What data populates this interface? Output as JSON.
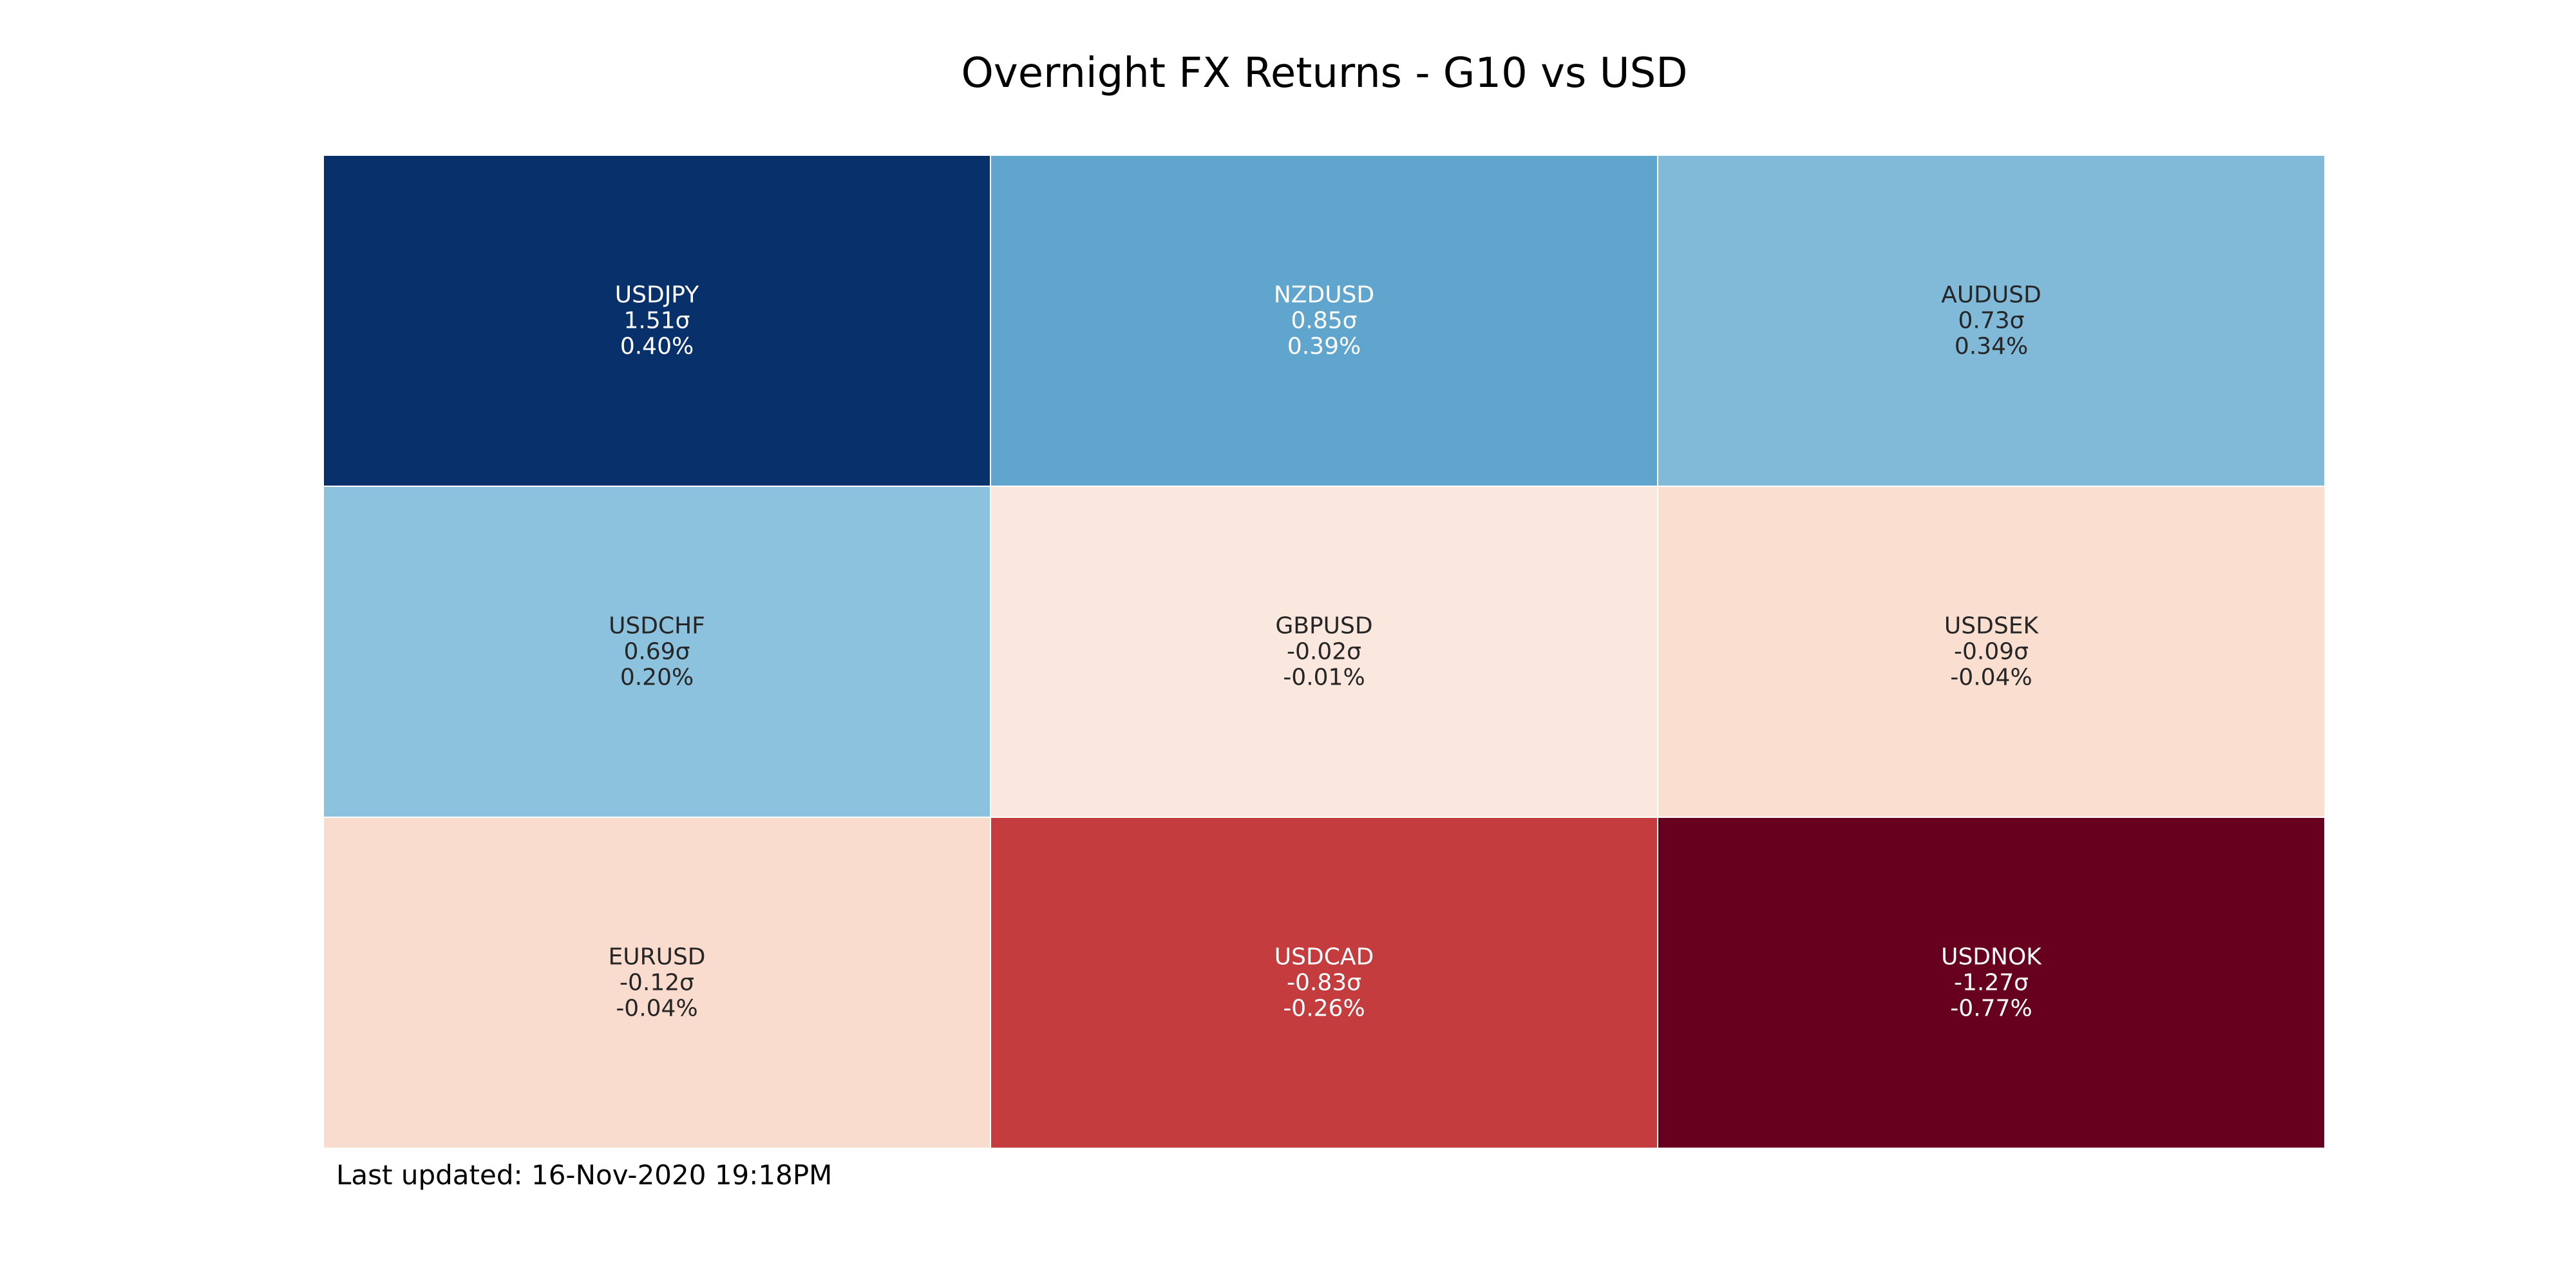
{
  "chart_data": {
    "type": "heatmap",
    "title": "Overnight FX Returns - G10 vs USD",
    "colormap": "RdBu",
    "color_value": "sigma",
    "rows": 3,
    "cols": 3,
    "cells": [
      {
        "pair": "USDJPY",
        "sigma": 1.51,
        "sigma_label": "1.51σ",
        "return_pct": 0.4,
        "return_label": "0.40%",
        "color": "#08306b",
        "text_color": "#ffffff"
      },
      {
        "pair": "NZDUSD",
        "sigma": 0.85,
        "sigma_label": "0.85σ",
        "return_pct": 0.39,
        "return_label": "0.39%",
        "color": "#5fa5ce",
        "text_color": "#ffffff"
      },
      {
        "pair": "AUDUSD",
        "sigma": 0.73,
        "sigma_label": "0.73σ",
        "return_pct": 0.34,
        "return_label": "0.34%",
        "color": "#81b9d8",
        "text_color": "#262626"
      },
      {
        "pair": "USDCHF",
        "sigma": 0.69,
        "sigma_label": "0.69σ",
        "return_pct": 0.2,
        "return_label": "0.20%",
        "color": "#8cc2de",
        "text_color": "#262626"
      },
      {
        "pair": "GBPUSD",
        "sigma": -0.02,
        "sigma_label": "-0.02σ",
        "return_pct": -0.01,
        "return_label": "-0.01%",
        "color": "#fae7de",
        "text_color": "#262626"
      },
      {
        "pair": "USDSEK",
        "sigma": -0.09,
        "sigma_label": "-0.09σ",
        "return_pct": -0.04,
        "return_label": "-0.04%",
        "color": "#fadfd1",
        "text_color": "#262626"
      },
      {
        "pair": "EURUSD",
        "sigma": -0.12,
        "sigma_label": "-0.12σ",
        "return_pct": -0.04,
        "return_label": "-0.04%",
        "color": "#f9dccd",
        "text_color": "#262626"
      },
      {
        "pair": "USDCAD",
        "sigma": -0.83,
        "sigma_label": "-0.83σ",
        "return_pct": -0.26,
        "return_label": "-0.26%",
        "color": "#c53c3e",
        "text_color": "#ffffff"
      },
      {
        "pair": "USDNOK",
        "sigma": -1.27,
        "sigma_label": "-1.27σ",
        "return_pct": -0.77,
        "return_label": "-0.77%",
        "color": "#67001f",
        "text_color": "#ffffff"
      }
    ],
    "grid": false,
    "legend": "none"
  },
  "footer": {
    "last_updated": "Last updated: 16-Nov-2020 19:18PM"
  }
}
